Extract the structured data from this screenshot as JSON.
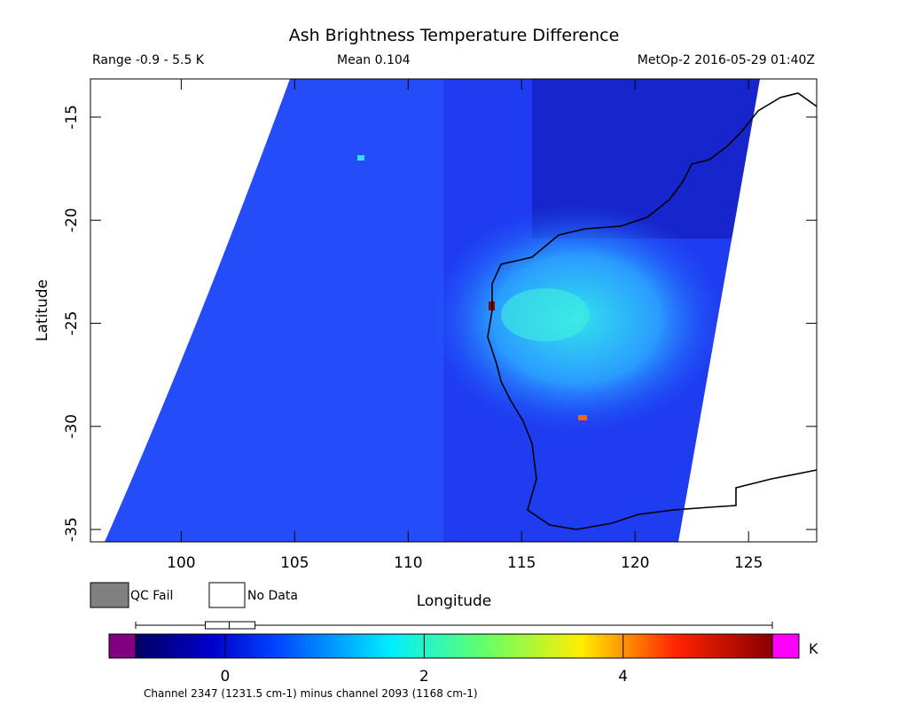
{
  "header": {
    "title": "Ash Brightness Temperature Difference",
    "range": "Range -0.9 - 5.5 K",
    "mean": "Mean 0.104",
    "source": "MetOp-2 2016-05-29 01:40Z"
  },
  "map": {
    "xlim": [
      96,
      128
    ],
    "ylim": [
      -35.6,
      -13.15
    ],
    "xticks": [
      100,
      105,
      110,
      115,
      120,
      125
    ],
    "yticks": [
      -15,
      -20,
      -25,
      -30,
      -35
    ],
    "xlabel": "Longitude",
    "ylabel": "Latitude"
  },
  "legend": {
    "qc_fail": "QC Fail",
    "no_data": "No Data"
  },
  "colorbar": {
    "clim": [
      -0.9,
      5.5
    ],
    "ticks": [
      0,
      2,
      4
    ],
    "unit": "K",
    "caption": "Channel 2347 (1231.5 cm-1) minus channel 2093 (1168 cm-1)",
    "box": {
      "q1": -0.2,
      "median": 0.04,
      "q3": 0.3
    }
  }
}
